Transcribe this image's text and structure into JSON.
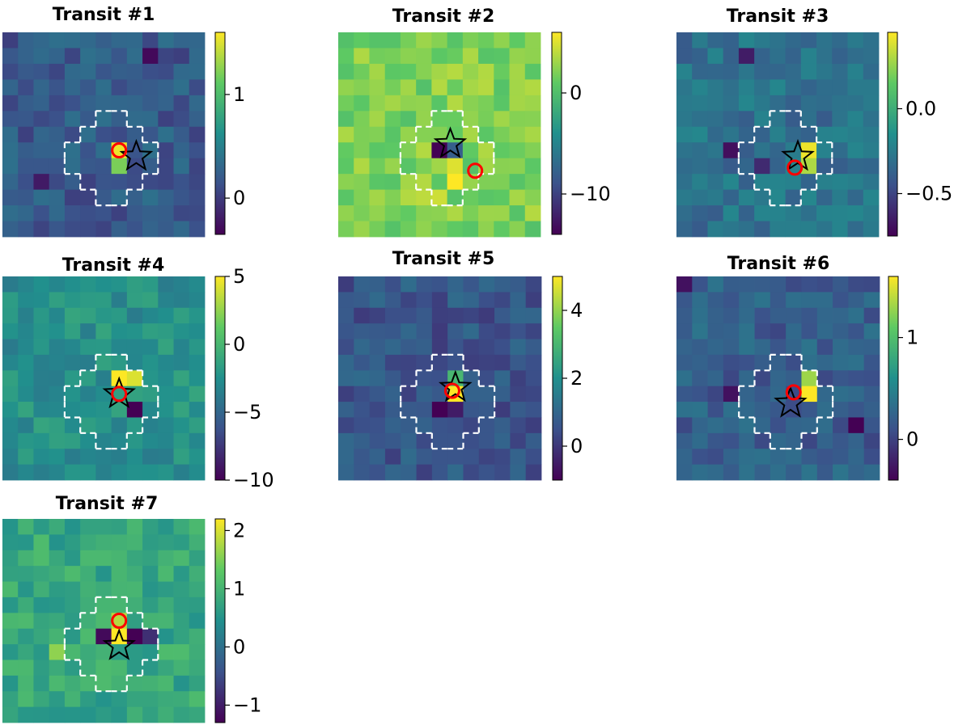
{
  "colormap": [
    "#440154",
    "#3b528b",
    "#21908d",
    "#5dc963",
    "#fde725"
  ],
  "mask_color": "#ffffff",
  "star_edge_color": "#000000",
  "circle_color": "#ff0000",
  "chart_data": [
    {
      "type": "heatmap",
      "title": "Transit #1",
      "grid_size": 13,
      "colorbar": {
        "range": [
          -0.35,
          1.6
        ],
        "ticks": [
          0,
          1
        ],
        "tick_labels": [
          "0",
          "1"
        ]
      },
      "background_value": 0.2,
      "hot_cells": [
        [
          7,
          7,
          1.55
        ],
        [
          8,
          7,
          1.2
        ]
      ],
      "cold_cells": [
        [
          1,
          9,
          -0.3
        ],
        [
          9,
          2,
          -0.2
        ]
      ],
      "star": [
        7.9,
        8.6
      ],
      "circle": [
        7.5,
        7.5
      ]
    },
    {
      "type": "heatmap",
      "title": "Transit #2",
      "grid_size": 13,
      "colorbar": {
        "range": [
          -14,
          6
        ],
        "ticks": [
          0,
          -10
        ],
        "tick_labels": [
          "0",
          "−10"
        ]
      },
      "background_value": 2.0,
      "hot_cells": [
        [
          9,
          7,
          6.0
        ],
        [
          8,
          7,
          5.0
        ],
        [
          10,
          6,
          4.5
        ],
        [
          10,
          5,
          4.0
        ],
        [
          11,
          7,
          3.5
        ]
      ],
      "cold_cells": [
        [
          7,
          6,
          -14.0
        ],
        [
          7,
          7,
          -8.0
        ]
      ],
      "star": [
        7.1,
        7.2
      ],
      "circle": [
        8.8,
        8.8
      ]
    },
    {
      "type": "heatmap",
      "title": "Transit #3",
      "grid_size": 13,
      "colorbar": {
        "range": [
          -0.75,
          0.45
        ],
        "ticks": [
          0.0,
          -0.5
        ],
        "tick_labels": [
          "0.0",
          "−0.5"
        ]
      },
      "background_value": -0.3,
      "hot_cells": [
        [
          7,
          8,
          0.42
        ],
        [
          8,
          8,
          0.3
        ]
      ],
      "cold_cells": [
        [
          7,
          3,
          -0.7
        ],
        [
          1,
          4,
          -0.65
        ],
        [
          8,
          5,
          -0.6
        ]
      ],
      "star": [
        7.9,
        7.8
      ],
      "circle": [
        8.6,
        7.6
      ]
    },
    {
      "type": "heatmap",
      "title": "Transit #4",
      "grid_size": 13,
      "colorbar": {
        "range": [
          -10,
          5
        ],
        "ticks": [
          5,
          0,
          -5,
          -10
        ],
        "tick_labels": [
          "5",
          "0",
          "−5",
          "−10"
        ]
      },
      "background_value": -2.5,
      "hot_cells": [
        [
          6,
          7,
          5.0
        ],
        [
          6,
          8,
          4.2
        ]
      ],
      "cold_cells": [
        [
          8,
          8,
          -10.0
        ]
      ],
      "star": [
        7.5,
        7.5
      ],
      "circle": [
        7.5,
        7.5
      ]
    },
    {
      "type": "heatmap",
      "title": "Transit #5",
      "grid_size": 13,
      "colorbar": {
        "range": [
          -1,
          5
        ],
        "ticks": [
          4,
          2,
          0
        ],
        "tick_labels": [
          "4",
          "2",
          "0"
        ]
      },
      "background_value": 0.6,
      "hot_cells": [
        [
          7,
          7,
          5.0
        ],
        [
          6,
          7,
          3.0
        ]
      ],
      "cold_cells": [
        [
          8,
          6,
          -1.0
        ],
        [
          8,
          7,
          -0.5
        ]
      ],
      "star": [
        7.1,
        7.5
      ],
      "circle": [
        7.3,
        7.3
      ]
    },
    {
      "type": "heatmap",
      "title": "Transit #6",
      "grid_size": 13,
      "colorbar": {
        "range": [
          -0.4,
          1.6
        ],
        "ticks": [
          1,
          0
        ],
        "tick_labels": [
          "1",
          "0"
        ]
      },
      "background_value": 0.2,
      "hot_cells": [
        [
          7,
          8,
          1.6
        ],
        [
          6,
          8,
          1.3
        ]
      ],
      "cold_cells": [
        [
          9,
          11,
          -0.4
        ],
        [
          0,
          0,
          -0.3
        ],
        [
          7,
          3,
          -0.3
        ]
      ],
      "star": [
        8.1,
        7.3
      ],
      "circle": [
        7.4,
        7.5
      ]
    },
    {
      "type": "heatmap",
      "title": "Transit #7",
      "grid_size": 13,
      "colorbar": {
        "range": [
          -1.3,
          2.2
        ],
        "ticks": [
          2,
          1,
          0,
          -1
        ],
        "tick_labels": [
          "2",
          "1",
          "0",
          "−1"
        ]
      },
      "background_value": 0.8,
      "hot_cells": [
        [
          7,
          7,
          2.2
        ],
        [
          7,
          8,
          1.8
        ],
        [
          7,
          9,
          1.6
        ],
        [
          8,
          3,
          1.6
        ],
        [
          6,
          7,
          1.8
        ]
      ],
      "cold_cells": [
        [
          7,
          6,
          -1.2
        ],
        [
          7,
          8,
          -1.3
        ],
        [
          7,
          9,
          -0.8
        ]
      ],
      "star": [
        8.1,
        7.5
      ],
      "circle": [
        6.5,
        7.5
      ]
    }
  ]
}
